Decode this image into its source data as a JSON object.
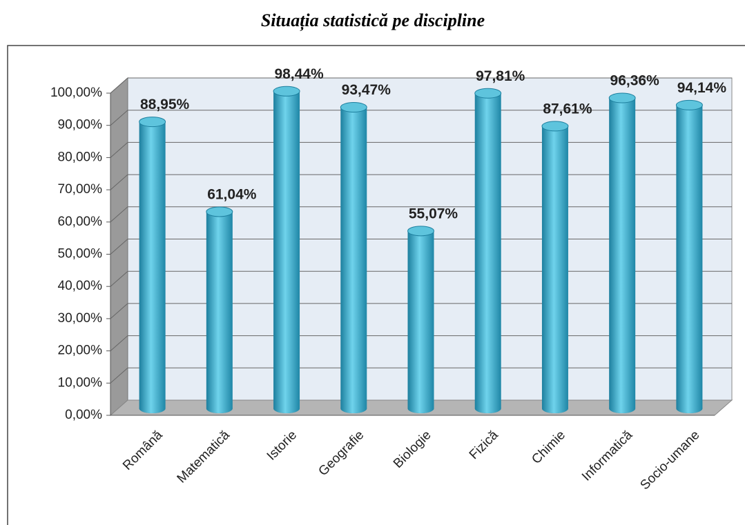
{
  "chart_data": {
    "type": "bar",
    "title": "Situația statistică pe discipline",
    "categories": [
      "Română",
      "Matematică",
      "Istorie",
      "Geografie",
      "Biologie",
      "Fizică",
      "Chimie",
      "Informatică",
      "Socio-umane"
    ],
    "values": [
      88.95,
      61.04,
      98.44,
      93.47,
      55.07,
      97.81,
      87.61,
      96.36,
      94.14
    ],
    "value_labels": [
      "88,95%",
      "61,04%",
      "98,44%",
      "93,47%",
      "55,07%",
      "97,81%",
      "87,61%",
      "96,36%",
      "94,14%"
    ],
    "color": "#3aa8c8",
    "ylim": [
      0,
      100
    ],
    "yticks": [
      {
        "value": 0,
        "label": "0,00%"
      },
      {
        "value": 10,
        "label": "10,00%"
      },
      {
        "value": 20,
        "label": "20,00%"
      },
      {
        "value": 30,
        "label": "30,00%"
      },
      {
        "value": 40,
        "label": "40,00%"
      },
      {
        "value": 50,
        "label": "50,00%"
      },
      {
        "value": 60,
        "label": "60,00%"
      },
      {
        "value": 70,
        "label": "70,00%"
      },
      {
        "value": 80,
        "label": "80,00%"
      },
      {
        "value": 90,
        "label": "90,00%"
      },
      {
        "value": 100,
        "label": "100,00%"
      }
    ],
    "grid": true
  }
}
